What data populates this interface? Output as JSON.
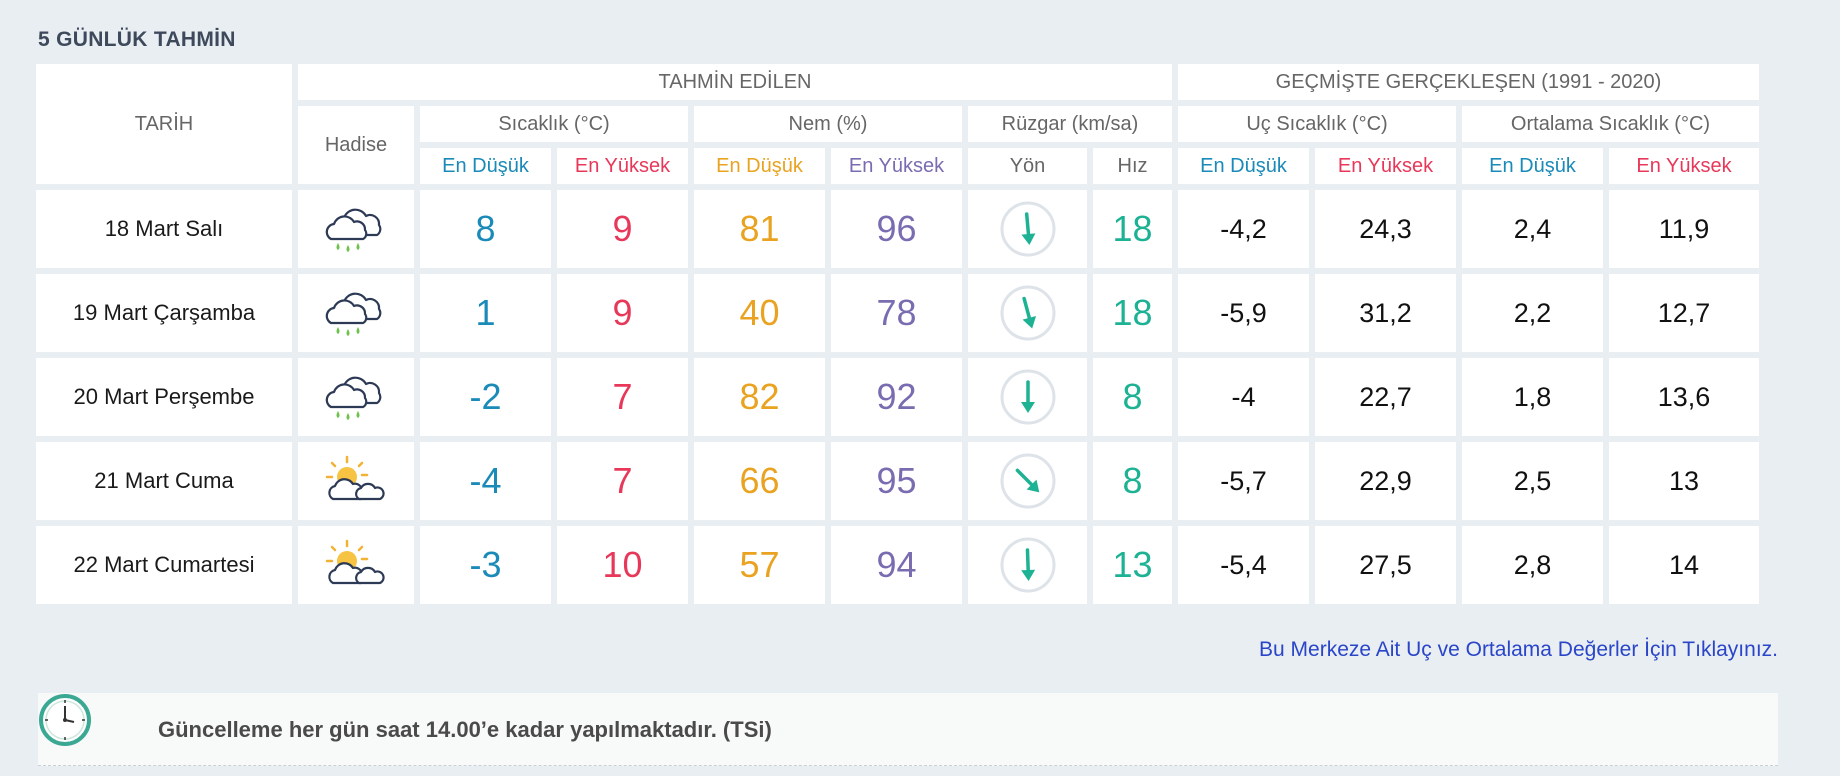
{
  "section_title": "5 GÜNLÜK TAHMİN",
  "header": {
    "tarih": "TARİH",
    "tahmin_edilen": "TAHMİN EDİLEN",
    "gecmiste": "GEÇMİŞTE GERÇEKLEŞEN (1991 - 2020)",
    "hadise": "Hadise",
    "sicaklik": "Sıcaklık (°C)",
    "nem": "Nem (%)",
    "ruzgar": "Rüzgar (km/sa)",
    "uc_sicaklik": "Uç Sıcaklık (°C)",
    "ortalama_sicaklik": "Ortalama Sıcaklık (°C)",
    "en_dusuk": "En Düşük",
    "en_yuksek": "En Yüksek",
    "yon": "Yön",
    "hiz": "Hız"
  },
  "rows": [
    {
      "date": "18 Mart Salı",
      "icon": "rain-cloud-icon",
      "temp_min": "8",
      "temp_max": "9",
      "hum_min": "81",
      "hum_max": "96",
      "wind_dir_deg": 175,
      "wind_speed": "18",
      "uc_min": "-4,2",
      "uc_max": "24,3",
      "ort_min": "2,4",
      "ort_max": "11,9"
    },
    {
      "date": "19 Mart Çarşamba",
      "icon": "rain-cloud-icon",
      "temp_min": "1",
      "temp_max": "9",
      "hum_min": "40",
      "hum_max": "78",
      "wind_dir_deg": 165,
      "wind_speed": "18",
      "uc_min": "-5,9",
      "uc_max": "31,2",
      "ort_min": "2,2",
      "ort_max": "12,7"
    },
    {
      "date": "20 Mart Perşembe",
      "icon": "rain-cloud-icon",
      "temp_min": "-2",
      "temp_max": "7",
      "hum_min": "82",
      "hum_max": "92",
      "wind_dir_deg": 180,
      "wind_speed": "8",
      "uc_min": "-4",
      "uc_max": "22,7",
      "ort_min": "1,8",
      "ort_max": "13,6"
    },
    {
      "date": "21 Mart Cuma",
      "icon": "partly-sunny-icon",
      "temp_min": "-4",
      "temp_max": "7",
      "hum_min": "66",
      "hum_max": "95",
      "wind_dir_deg": 135,
      "wind_speed": "8",
      "uc_min": "-5,7",
      "uc_max": "22,9",
      "ort_min": "2,5",
      "ort_max": "13"
    },
    {
      "date": "22 Mart Cumartesi",
      "icon": "partly-sunny-icon",
      "temp_min": "-3",
      "temp_max": "10",
      "hum_min": "57",
      "hum_max": "94",
      "wind_dir_deg": 178,
      "wind_speed": "13",
      "uc_min": "-5,4",
      "uc_max": "27,5",
      "ort_min": "2,8",
      "ort_max": "14"
    }
  ],
  "link_text": "Bu Merkeze Ait Uç ve Ortalama Değerler İçin Tıklayınız.",
  "note_text": "Güncelleme her gün saat 14.00’e kadar yapılmaktadır. (TSi)",
  "colors": {
    "blue": "#1a8ab8",
    "red": "#e8385a",
    "orange": "#e9a320",
    "purple": "#7a6cb0",
    "teal": "#1eb294",
    "link": "#2a45c8"
  }
}
